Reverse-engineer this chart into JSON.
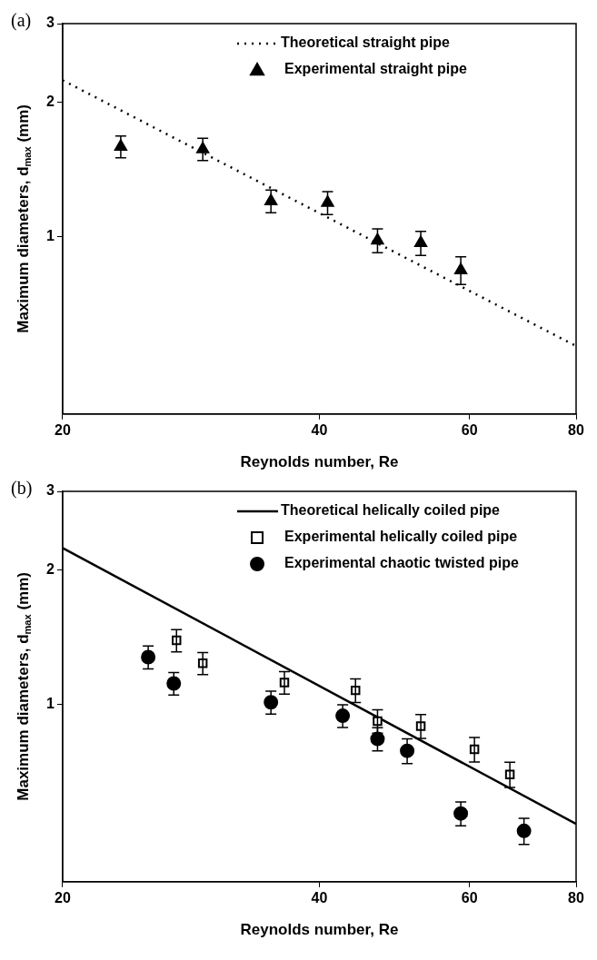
{
  "chart_data": [
    {
      "type": "scatter",
      "title": "(a)",
      "xlabel": "Reynolds number, Re",
      "ylabel": "Maximum diameters, d$_{max}$ (mm)",
      "log": "xy",
      "xlim": [
        20,
        80
      ],
      "ylim": [
        0.4,
        3
      ],
      "xticks": [
        20,
        40,
        60,
        80
      ],
      "yticks": [
        1,
        2,
        3
      ],
      "legend": "top right",
      "grid": false,
      "series": [
        {
          "name": "Theoretical straight pipe",
          "type": "line",
          "line_style": "dotted",
          "marker": "none",
          "color": "#000000",
          "x": [
            20,
            80
          ],
          "values": [
            2.24,
            0.568
          ]
        },
        {
          "name": "Experimental straight pipe",
          "type": "scatter",
          "marker": "triangle",
          "color": "#000000",
          "x": [
            23.4,
            29.2,
            35.1,
            40.9,
            46.8,
            52.6,
            58.6
          ],
          "values": [
            1.59,
            1.57,
            1.2,
            1.19,
            0.98,
            0.967,
            0.84
          ],
          "errors": [
            0.09,
            0.09,
            0.07,
            0.07,
            0.06,
            0.06,
            0.06
          ]
        }
      ]
    },
    {
      "type": "scatter",
      "title": "(b)",
      "xlabel": "Reynolds number, Re",
      "ylabel": "Maximum diameters, d$_{max}$ (mm)",
      "log": "xy",
      "xlim": [
        20,
        80
      ],
      "ylim": [
        0.4,
        3
      ],
      "xticks": [
        20,
        40,
        60,
        80
      ],
      "yticks": [
        1,
        2,
        3
      ],
      "legend": "top right",
      "grid": false,
      "series": [
        {
          "name": "Theoretical helically coiled pipe",
          "type": "line",
          "line_style": "solid",
          "marker": "none",
          "color": "#000000",
          "x": [
            20,
            80
          ],
          "values": [
            2.24,
            0.539
          ]
        },
        {
          "name": "Experimental helically coiled pipe",
          "type": "scatter",
          "marker": "square",
          "color": "#000000",
          "x": [
            27.2,
            29.2,
            36.4,
            44.1,
            46.8,
            52.6,
            60.8,
            66.9
          ],
          "values": [
            1.39,
            1.235,
            1.118,
            1.074,
            0.916,
            0.893,
            0.792,
            0.696
          ],
          "errors": [
            0.08,
            0.07,
            0.065,
            0.065,
            0.055,
            0.055,
            0.05,
            0.045
          ]
        },
        {
          "name": "Experimental chaotic twisted pipe",
          "type": "scatter",
          "marker": "circle",
          "color": "#000000",
          "x": [
            25.2,
            27.0,
            35.1,
            42.6,
            46.8,
            50.7,
            58.6,
            69.5
          ],
          "values": [
            1.275,
            1.113,
            1.01,
            0.942,
            0.836,
            0.786,
            0.569,
            0.52
          ],
          "errors": [
            0.075,
            0.065,
            0.06,
            0.055,
            0.05,
            0.05,
            0.035,
            0.035
          ]
        }
      ]
    }
  ]
}
